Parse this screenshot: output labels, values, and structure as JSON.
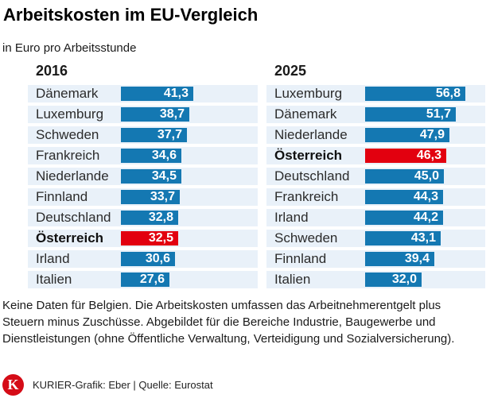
{
  "header": {
    "title": "Arbeitskosten im EU-Vergleich",
    "subtitle": "in Euro pro Arbeitsstunde"
  },
  "colors": {
    "bar_blue": "#1478b2",
    "bar_red": "#e2000f",
    "row_stripe": "#e9f1f9",
    "logo_red": "#d50c17"
  },
  "chart_data": {
    "type": "bar",
    "orientation": "horizontal",
    "title": "Arbeitskosten im EU-Vergleich",
    "unit_label": "in Euro pro Arbeitsstunde",
    "xlim": [
      0,
      60
    ],
    "highlighted_country": "Österreich",
    "groups": [
      {
        "label": "2016",
        "rows": [
          {
            "country": "Dänemark",
            "value": 41.3,
            "display": "41,3",
            "highlight": false
          },
          {
            "country": "Luxemburg",
            "value": 38.7,
            "display": "38,7",
            "highlight": false
          },
          {
            "country": "Schweden",
            "value": 37.7,
            "display": "37,7",
            "highlight": false
          },
          {
            "country": "Frankreich",
            "value": 34.6,
            "display": "34,6",
            "highlight": false
          },
          {
            "country": "Niederlande",
            "value": 34.5,
            "display": "34,5",
            "highlight": false
          },
          {
            "country": "Finnland",
            "value": 33.7,
            "display": "33,7",
            "highlight": false
          },
          {
            "country": "Deutschland",
            "value": 32.8,
            "display": "32,8",
            "highlight": false
          },
          {
            "country": "Österreich",
            "value": 32.5,
            "display": "32,5",
            "highlight": true
          },
          {
            "country": "Irland",
            "value": 30.6,
            "display": "30,6",
            "highlight": false
          },
          {
            "country": "Italien",
            "value": 27.6,
            "display": "27,6",
            "highlight": false
          }
        ]
      },
      {
        "label": "2025",
        "rows": [
          {
            "country": "Luxemburg",
            "value": 56.8,
            "display": "56,8",
            "highlight": false
          },
          {
            "country": "Dänemark",
            "value": 51.7,
            "display": "51,7",
            "highlight": false
          },
          {
            "country": "Niederlande",
            "value": 47.9,
            "display": "47,9",
            "highlight": false
          },
          {
            "country": "Österreich",
            "value": 46.3,
            "display": "46,3",
            "highlight": true
          },
          {
            "country": "Deutschland",
            "value": 45.0,
            "display": "45,0",
            "highlight": false
          },
          {
            "country": "Frankreich",
            "value": 44.3,
            "display": "44,3",
            "highlight": false
          },
          {
            "country": "Irland",
            "value": 44.2,
            "display": "44,2",
            "highlight": false
          },
          {
            "country": "Schweden",
            "value": 43.1,
            "display": "43,1",
            "highlight": false
          },
          {
            "country": "Finnland",
            "value": 39.4,
            "display": "39,4",
            "highlight": false
          },
          {
            "country": "Italien",
            "value": 32.0,
            "display": "32,0",
            "highlight": false
          }
        ]
      }
    ]
  },
  "footnote": "Keine Daten für Belgien. Die Arbeitskosten umfassen das Arbeitnehmerentgelt plus Steuern minus Zuschüsse. Abgebildet für die Bereiche Industrie, Baugewerbe und Dienstleistungen (ohne Öffentliche Verwaltung, Verteidigung und Sozialversicherung).",
  "credit": {
    "logo_letter": "K",
    "text": "KURIER-Grafik: Eber | Quelle: Eurostat"
  }
}
